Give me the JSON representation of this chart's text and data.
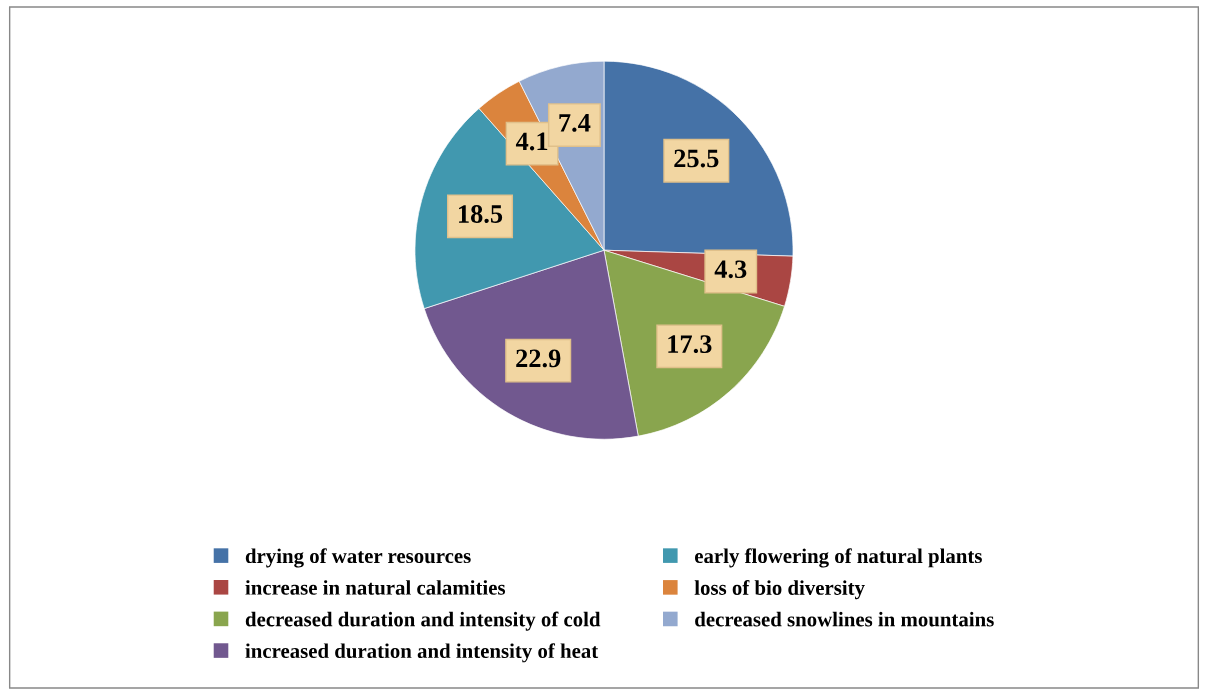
{
  "chart_data": {
    "type": "pie",
    "categories": [
      "drying of water resources",
      "increase in natural calamities",
      "decreased duration and intensity of cold",
      "increased duration and intensity of heat",
      "early flowering of natural plants",
      "loss of bio diversity",
      "decreased snowlines in mountains"
    ],
    "values": [
      25.5,
      4.3,
      17.3,
      22.9,
      18.5,
      4.1,
      7.4
    ],
    "colors": [
      "#4572a7",
      "#aa4643",
      "#89a54e",
      "#71588f",
      "#4198af",
      "#db843d",
      "#93a9cf"
    ],
    "data_labels": true,
    "legend": "bottom"
  }
}
